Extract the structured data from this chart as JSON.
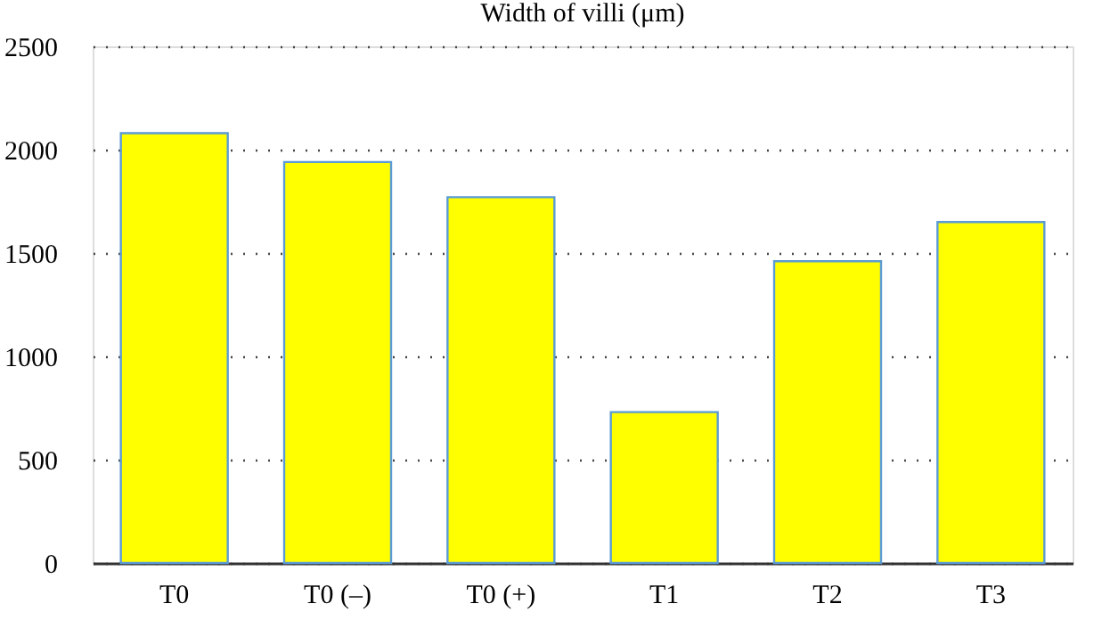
{
  "chart_data": {
    "type": "bar",
    "title": "Width of villi (μm)",
    "categories": [
      "T0",
      "T0 (–)",
      "T0 (+)",
      "T1",
      "T2",
      "T3"
    ],
    "values": [
      2080,
      1940,
      1770,
      730,
      1460,
      1650
    ],
    "color": "#ffff00",
    "ylim": [
      0,
      2500
    ],
    "yticks": [
      0,
      500,
      1000,
      1500,
      2000,
      2500
    ],
    "grid": "y"
  }
}
